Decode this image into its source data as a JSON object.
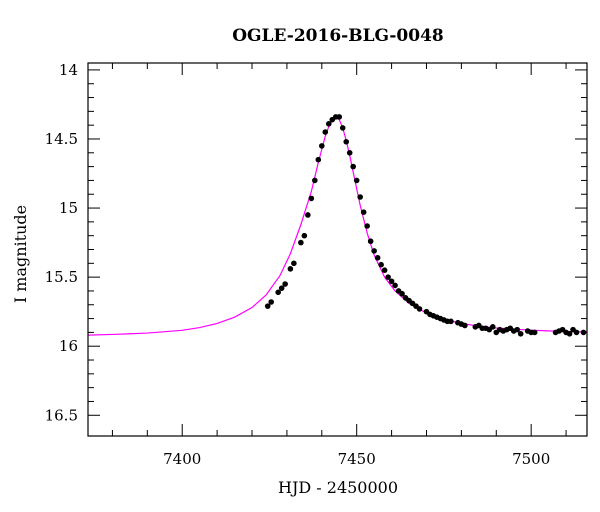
{
  "chart_data": {
    "type": "scatter",
    "title": "OGLE-2016-BLG-0048",
    "xlabel": "HJD - 2450000",
    "ylabel": "I magnitude",
    "xlim": [
      7373,
      7516
    ],
    "ylim": [
      16.65,
      13.95
    ],
    "y_inverted": true,
    "x_ticks": [
      7400,
      7450,
      7500
    ],
    "y_ticks": [
      14,
      14.5,
      15,
      15.5,
      16,
      16.5
    ],
    "x_tick_labels": [
      "7400",
      "7450",
      "7500"
    ],
    "y_tick_labels": [
      "14",
      "14.5",
      "15",
      "15.5",
      "16",
      "16.5"
    ],
    "grid": false,
    "colors": {
      "model": "#ff00ff",
      "data": "#000000"
    },
    "model": {
      "name": "",
      "x": [
        7373,
        7380,
        7390,
        7400,
        7405,
        7410,
        7415,
        7420,
        7424,
        7428,
        7431,
        7434,
        7437,
        7439,
        7441,
        7442,
        7443,
        7444,
        7445,
        7446,
        7447,
        7448,
        7449,
        7451,
        7453,
        7455,
        7458,
        7461,
        7465,
        7470,
        7475,
        7480,
        7485,
        7490,
        7495,
        7500,
        7505,
        7510,
        7516
      ],
      "y": [
        15.92,
        15.915,
        15.905,
        15.885,
        15.865,
        15.835,
        15.79,
        15.72,
        15.63,
        15.49,
        15.33,
        15.12,
        14.88,
        14.67,
        14.48,
        14.41,
        14.36,
        14.345,
        14.36,
        14.42,
        14.51,
        14.62,
        14.74,
        14.98,
        15.18,
        15.34,
        15.5,
        15.6,
        15.69,
        15.76,
        15.805,
        15.835,
        15.855,
        15.868,
        15.877,
        15.884,
        15.889,
        15.893,
        15.897
      ]
    },
    "series": [
      {
        "name": "",
        "x": [
          7424.5,
          7425.5,
          7427.5,
          7428.5,
          7429.5,
          7431,
          7432,
          7434,
          7435,
          7436,
          7437,
          7438,
          7439,
          7440,
          7441,
          7442,
          7443,
          7444,
          7445,
          7446,
          7447,
          7448,
          7449,
          7450,
          7451,
          7452,
          7453,
          7454,
          7455,
          7456,
          7457,
          7458,
          7459,
          7460,
          7461,
          7462,
          7463,
          7464,
          7465,
          7466,
          7467,
          7468,
          7470,
          7471,
          7472,
          7473,
          7474,
          7475,
          7476,
          7477,
          7479,
          7480,
          7481,
          7484,
          7485,
          7486,
          7487,
          7488,
          7489,
          7490,
          7491,
          7492,
          7493,
          7494,
          7495,
          7496,
          7497,
          7499,
          7500,
          7501,
          7507,
          7508,
          7509,
          7510,
          7511,
          7512,
          7513,
          7515
        ],
        "y": [
          15.71,
          15.68,
          15.61,
          15.58,
          15.55,
          15.44,
          15.4,
          15.25,
          15.2,
          15.05,
          14.93,
          14.8,
          14.65,
          14.55,
          14.45,
          14.39,
          14.36,
          14.34,
          14.34,
          14.42,
          14.52,
          14.6,
          14.7,
          14.8,
          14.92,
          15.03,
          15.13,
          15.24,
          15.31,
          15.36,
          15.41,
          15.45,
          15.5,
          15.53,
          15.56,
          15.6,
          15.62,
          15.65,
          15.67,
          15.69,
          15.71,
          15.73,
          15.75,
          15.77,
          15.78,
          15.79,
          15.8,
          15.81,
          15.82,
          15.82,
          15.83,
          15.84,
          15.85,
          15.86,
          15.85,
          15.87,
          15.87,
          15.88,
          15.86,
          15.9,
          15.88,
          15.89,
          15.88,
          15.87,
          15.89,
          15.88,
          15.91,
          15.89,
          15.9,
          15.9,
          15.9,
          15.89,
          15.88,
          15.9,
          15.91,
          15.88,
          15.9,
          15.9
        ]
      }
    ]
  }
}
